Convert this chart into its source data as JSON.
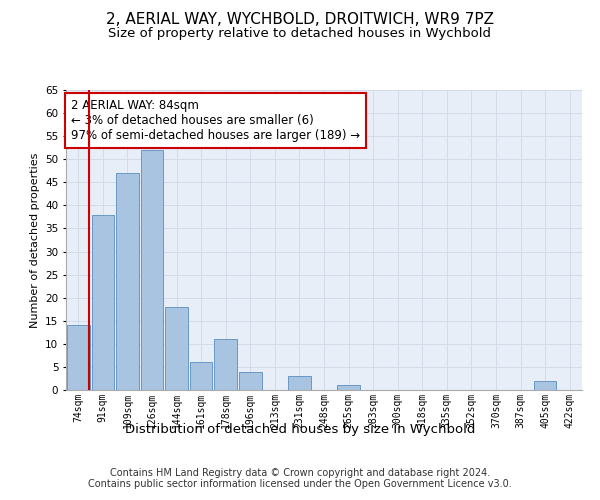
{
  "title1": "2, AERIAL WAY, WYCHBOLD, DROITWICH, WR9 7PZ",
  "title2": "Size of property relative to detached houses in Wychbold",
  "xlabel": "Distribution of detached houses by size in Wychbold",
  "ylabel": "Number of detached properties",
  "categories": [
    "74sqm",
    "91sqm",
    "109sqm",
    "126sqm",
    "144sqm",
    "161sqm",
    "178sqm",
    "196sqm",
    "213sqm",
    "231sqm",
    "248sqm",
    "265sqm",
    "283sqm",
    "300sqm",
    "318sqm",
    "335sqm",
    "352sqm",
    "370sqm",
    "387sqm",
    "405sqm",
    "422sqm"
  ],
  "values": [
    14,
    38,
    47,
    52,
    18,
    6,
    11,
    4,
    0,
    3,
    0,
    1,
    0,
    0,
    0,
    0,
    0,
    0,
    0,
    2,
    0
  ],
  "bar_color": "#a8c4e0",
  "bar_edge_color": "#5a8fc0",
  "annotation_text": "2 AERIAL WAY: 84sqm\n← 3% of detached houses are smaller (6)\n97% of semi-detached houses are larger (189) →",
  "annotation_box_color": "#ffffff",
  "annotation_box_edge_color": "#cc0000",
  "ylim": [
    0,
    65
  ],
  "yticks": [
    0,
    5,
    10,
    15,
    20,
    25,
    30,
    35,
    40,
    45,
    50,
    55,
    60,
    65
  ],
  "grid_color": "#d0d8e8",
  "bg_color": "#e8eef8",
  "footer": "Contains HM Land Registry data © Crown copyright and database right 2024.\nContains public sector information licensed under the Open Government Licence v3.0.",
  "title1_fontsize": 11,
  "title2_fontsize": 9.5,
  "xlabel_fontsize": 9.5,
  "ylabel_fontsize": 8,
  "annotation_fontsize": 8.5,
  "footer_fontsize": 7,
  "red_line_x": 0.42
}
